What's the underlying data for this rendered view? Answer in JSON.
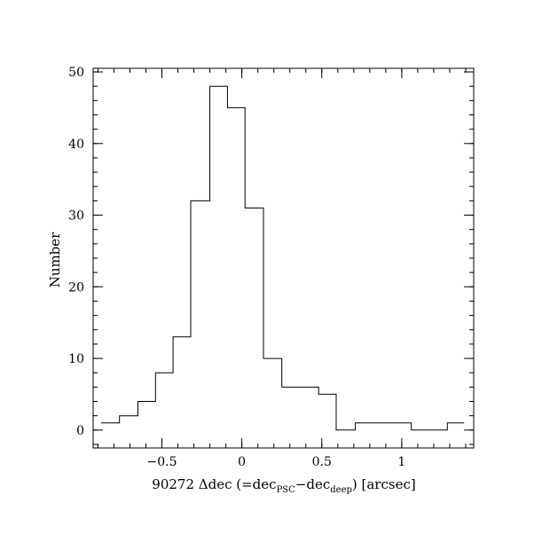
{
  "chart_data": {
    "type": "bar",
    "style": "step-histogram",
    "xlim": [
      -0.93,
      1.45
    ],
    "ylim": [
      -2.5,
      50.5
    ],
    "bin_edges": [
      -0.88,
      -0.765,
      -0.65,
      -0.54,
      -0.43,
      -0.32,
      -0.2,
      -0.09,
      0.02,
      0.135,
      0.25,
      0.36,
      0.48,
      0.59,
      0.71,
      0.82,
      0.94,
      1.06,
      1.17,
      1.285,
      1.39
    ],
    "values": [
      1,
      2,
      4,
      8,
      13,
      32,
      48,
      45,
      31,
      10,
      6,
      6,
      5,
      0,
      1,
      1,
      1,
      0,
      0,
      1
    ],
    "x_ticks": [
      {
        "value": -0.5,
        "label": "−0.5"
      },
      {
        "value": 0,
        "label": "0"
      },
      {
        "value": 0.5,
        "label": "0.5"
      },
      {
        "value": 1,
        "label": "1"
      }
    ],
    "x_minor_step": 0.1,
    "y_ticks": [
      {
        "value": 0,
        "label": "0"
      },
      {
        "value": 10,
        "label": "10"
      },
      {
        "value": 20,
        "label": "20"
      },
      {
        "value": 30,
        "label": "30"
      },
      {
        "value": 40,
        "label": "40"
      },
      {
        "value": 50,
        "label": "50"
      }
    ],
    "y_minor_step": 2,
    "ylabel": "Number",
    "xlabel": {
      "prefix": "90272 Δdec (=dec",
      "sub1": "PSC",
      "mid": "−dec",
      "sub2": "deep",
      "suffix": ") [arcsec]"
    },
    "grid": false,
    "legend": "none"
  }
}
